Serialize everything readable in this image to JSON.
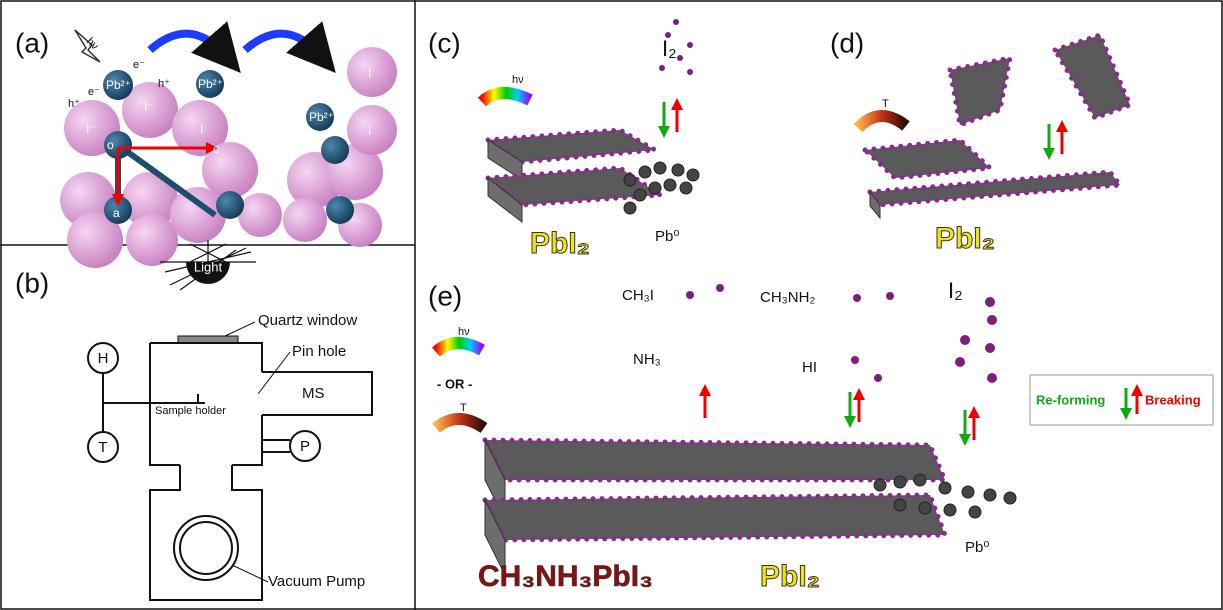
{
  "panels": {
    "a": {
      "label": "(a)",
      "icon": "hν",
      "pb1": "Pb²⁺",
      "pb2": "Pb²⁺",
      "pb3": "Pb²⁺",
      "i1": "I⁻",
      "i2": "I⁻",
      "i3": "I",
      "i4": "I",
      "i5": "I",
      "o": "o",
      "c": "c",
      "a": "a",
      "e1": "e⁻",
      "e2": "e⁻",
      "h1": "h⁺",
      "h2": "h⁺"
    },
    "b": {
      "label": "(b)",
      "light": "Light",
      "quartz": "Quartz window",
      "pinhole": "Pin hole",
      "h": "H",
      "t": "T",
      "p": "P",
      "ms": "MS",
      "sample": "Sample holder",
      "pump": "Vacuum Pump"
    },
    "c": {
      "label": "(c)",
      "i2": "I₂",
      "hv": "hν",
      "pbi2": "PbI₂",
      "pb0": "Pb⁰"
    },
    "d": {
      "label": "(d)",
      "t": "T",
      "pbi2": "PbI₂"
    },
    "e": {
      "label": "(e)",
      "ch3i": "CH₃I",
      "ch3nh2": "CH₃NH₂",
      "i2": "I₂",
      "nh3": "NH₃",
      "hi": "HI",
      "hv": "hν",
      "or": "- OR -",
      "t": "T",
      "mapbi3": "CH₃NH₃PbI₃",
      "pbi2": "PbI₂",
      "pb0": "Pb⁰",
      "reforming": "Re-forming",
      "breaking": "Breaking"
    }
  }
}
